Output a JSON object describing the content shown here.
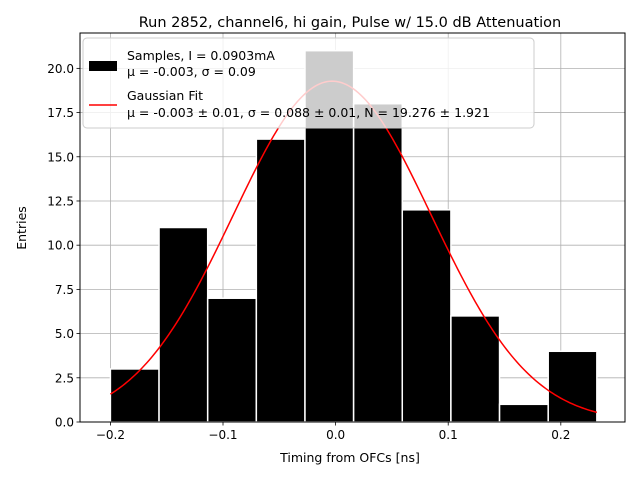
{
  "chart_data": {
    "type": "bar",
    "title": "Run 2852, channel6, hi gain, Pulse w/ 15.0 dB Attenuation",
    "xlabel": "Timing from OFCs [ns]",
    "ylabel": "Entries",
    "xlim": [
      -0.227,
      0.257
    ],
    "ylim": [
      0,
      22.0
    ],
    "grid": true,
    "x_ticks": [
      {
        "value": -0.2,
        "label": "−0.2"
      },
      {
        "value": -0.1,
        "label": "−0.1"
      },
      {
        "value": 0.0,
        "label": "0.0"
      },
      {
        "value": 0.1,
        "label": "0.1"
      },
      {
        "value": 0.2,
        "label": "0.2"
      }
    ],
    "y_ticks": [
      {
        "value": 0,
        "label": "0.0"
      },
      {
        "value": 2.5,
        "label": "2.5"
      },
      {
        "value": 5,
        "label": "5.0"
      },
      {
        "value": 7.5,
        "label": "7.5"
      },
      {
        "value": 10,
        "label": "10.0"
      },
      {
        "value": 12.5,
        "label": "12.5"
      },
      {
        "value": 15,
        "label": "15.0"
      },
      {
        "value": 17.5,
        "label": "17.5"
      },
      {
        "value": 20,
        "label": "20.0"
      }
    ],
    "histogram": {
      "name": "Samples, I = 0.0903mA",
      "stats": "μ = -0.003, σ = 0.09",
      "color": "#000000",
      "bin_edges": [
        -0.2,
        -0.1568,
        -0.1136,
        -0.0704,
        -0.0272,
        0.016,
        0.0592,
        0.1024,
        0.1456,
        0.1888,
        0.232
      ],
      "counts": [
        3,
        11,
        7,
        16,
        21,
        18,
        12,
        6,
        1,
        4
      ]
    },
    "fit": {
      "name": "Gaussian Fit",
      "stats": "μ = -0.003 ± 0.01, σ = 0.088 ± 0.01, N = 19.276 ± 1.921",
      "color": "#ff0000",
      "mu": -0.003,
      "sigma": 0.088,
      "N": 19.276,
      "x_range": [
        -0.2,
        0.232
      ]
    },
    "legend_position": "top-left"
  }
}
